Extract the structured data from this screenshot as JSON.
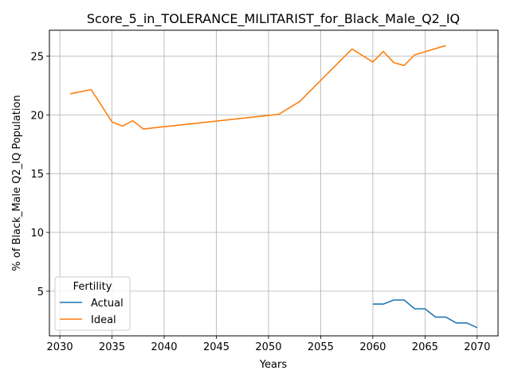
{
  "chart_data": {
    "type": "line",
    "title": "Score_5_in_TOLERANCE_MILITARIST_for_Black_Male_Q2_IQ",
    "xlabel": "Years",
    "ylabel": "% of Black_Male Q2_IQ Population",
    "xlim": [
      2029,
      2072
    ],
    "ylim": [
      1.2,
      27.2
    ],
    "xticks": [
      2030,
      2035,
      2040,
      2045,
      2050,
      2055,
      2060,
      2065,
      2070
    ],
    "yticks": [
      5,
      10,
      15,
      20,
      25
    ],
    "grid": true,
    "legend": {
      "title": "Fertility",
      "placement": "lower-left"
    },
    "series": [
      {
        "name": "Actual",
        "color": "#1f77b4",
        "x": [
          2060,
          2061,
          2062,
          2063,
          2064,
          2065,
          2066,
          2067,
          2068,
          2069,
          2070
        ],
        "y": [
          3.9,
          3.9,
          4.25,
          4.25,
          3.5,
          3.5,
          2.8,
          2.8,
          2.3,
          2.3,
          1.9
        ]
      },
      {
        "name": "Ideal",
        "color": "#ff7f0e",
        "x": [
          2031,
          2033,
          2035,
          2036,
          2037,
          2038,
          2051,
          2053,
          2058,
          2060,
          2061,
          2062,
          2063,
          2064,
          2067
        ],
        "y": [
          21.8,
          22.15,
          19.4,
          19.05,
          19.5,
          18.8,
          20.05,
          21.15,
          25.6,
          24.5,
          25.4,
          24.45,
          24.2,
          25.1,
          25.9
        ]
      }
    ]
  }
}
